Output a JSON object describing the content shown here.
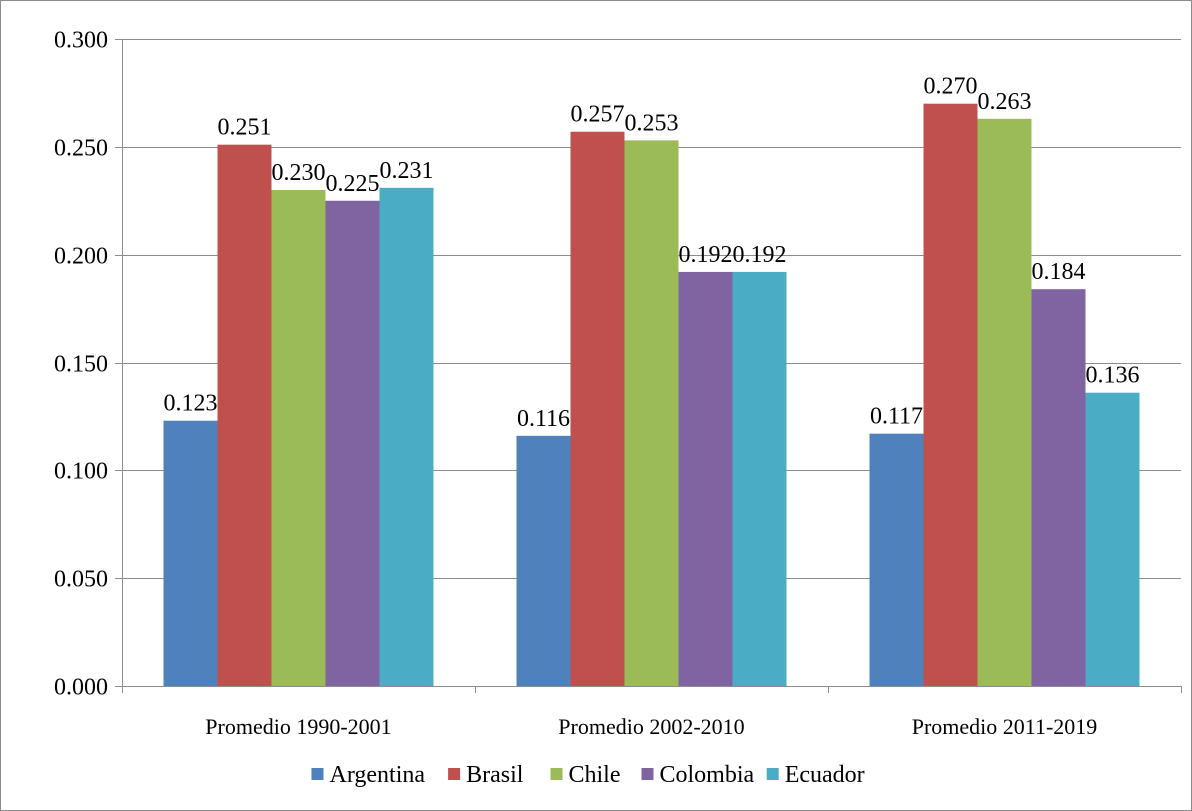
{
  "chart_data": {
    "type": "bar",
    "categories": [
      "Promedio 1990-2001",
      "Promedio 2002-2010",
      "Promedio 2011-2019"
    ],
    "series": [
      {
        "name": "Argentina",
        "values": [
          0.123,
          0.116,
          0.117
        ],
        "labels": [
          "0.123",
          "0.116",
          "0.117"
        ],
        "color": "#4F81BD"
      },
      {
        "name": "Brasil",
        "values": [
          0.251,
          0.257,
          0.27
        ],
        "labels": [
          "0.251",
          "0.257",
          "0.270"
        ],
        "color": "#C0504D"
      },
      {
        "name": "Chile",
        "values": [
          0.23,
          0.253,
          0.263
        ],
        "labels": [
          "0.230",
          "0.253",
          "0.263"
        ],
        "color": "#9BBB59"
      },
      {
        "name": "Colombia",
        "values": [
          0.225,
          0.192,
          0.184
        ],
        "labels": [
          "0.225",
          "0.192",
          "0.184"
        ],
        "color": "#8064A2"
      },
      {
        "name": "Ecuador",
        "values": [
          0.231,
          0.192,
          0.136
        ],
        "labels": [
          "0.231",
          "0.192",
          "0.136"
        ],
        "color": "#4BACC6"
      }
    ],
    "title": "",
    "xlabel": "",
    "ylabel": "",
    "ylim": [
      0,
      0.3
    ],
    "yticks": [
      "0.000",
      "0.050",
      "0.100",
      "0.150",
      "0.200",
      "0.250",
      "0.300"
    ],
    "grid": true,
    "legend": "bottom"
  }
}
